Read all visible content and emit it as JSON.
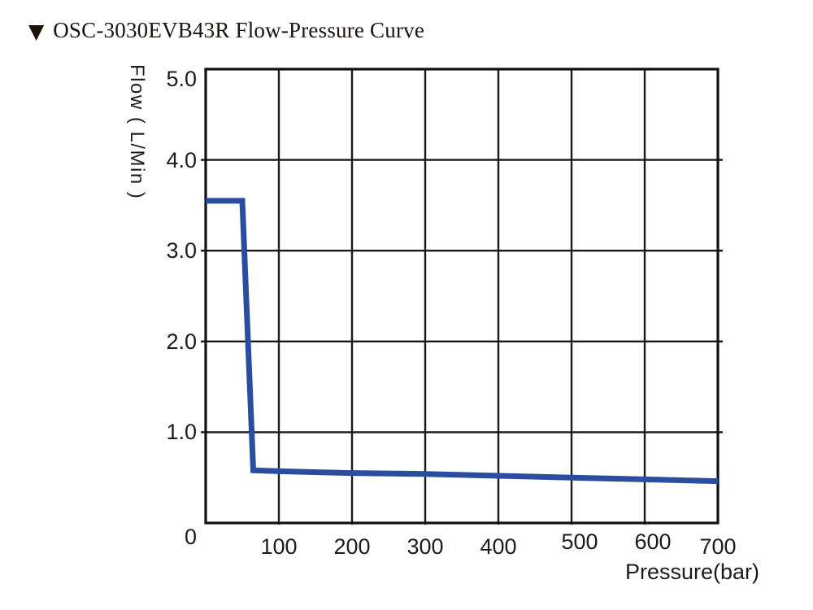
{
  "header": {
    "marker": "▼",
    "title": "OSC-3030EVB43R Flow-Pressure Curve"
  },
  "chart_data": {
    "type": "line",
    "title": "OSC-3030EVB43R Flow-Pressure Curve",
    "xlabel": "Pressure(bar)",
    "ylabel": "Flow ( L/Min )",
    "xlim": [
      0,
      700
    ],
    "ylim": [
      0,
      5
    ],
    "grid": true,
    "legend": false,
    "grid_color": "#1a1a1a",
    "frame_color": "#111111",
    "x_ticks": [
      {
        "v": 100,
        "label": "100"
      },
      {
        "v": 200,
        "label": "200"
      },
      {
        "v": 300,
        "label": "300"
      },
      {
        "v": 400,
        "label": "400"
      },
      {
        "v": 500,
        "label": "500"
      },
      {
        "v": 600,
        "label": "600"
      },
      {
        "v": 700,
        "label": "700"
      }
    ],
    "y_ticks": [
      {
        "v": 5,
        "label": "5.0"
      },
      {
        "v": 4,
        "label": "4.0"
      },
      {
        "v": 3,
        "label": "3.0"
      },
      {
        "v": 2,
        "label": "2.0"
      },
      {
        "v": 1,
        "label": "1.0"
      },
      {
        "v": 0,
        "label": "0"
      }
    ],
    "series": [
      {
        "name": "flow-pressure-curve",
        "color": "#2a4da0",
        "points": [
          [
            0,
            3.55
          ],
          [
            50,
            3.55
          ],
          [
            65,
            0.58
          ],
          [
            100,
            0.57
          ],
          [
            200,
            0.55
          ],
          [
            300,
            0.54
          ],
          [
            400,
            0.52
          ],
          [
            500,
            0.5
          ],
          [
            600,
            0.48
          ],
          [
            700,
            0.46
          ]
        ]
      }
    ]
  }
}
